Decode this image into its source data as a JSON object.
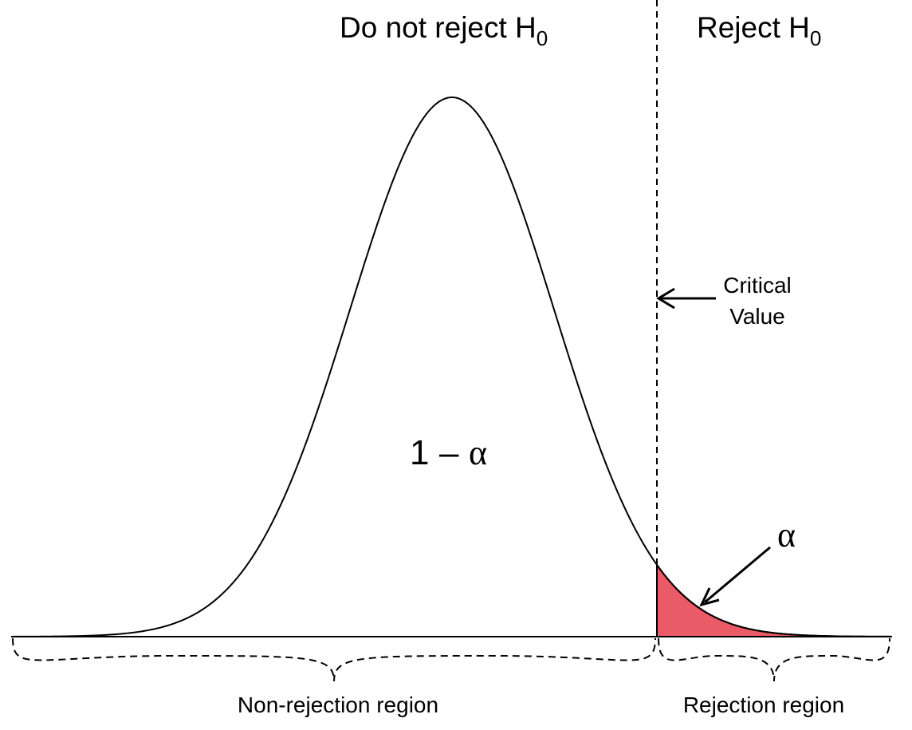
{
  "header": {
    "left_label": "Do not reject H",
    "left_subscript": "0",
    "right_label": "Reject H",
    "right_subscript": "0"
  },
  "annotations": {
    "critical_value_line1": "Critical",
    "critical_value_line2": "Value",
    "area_one": "1",
    "area_minus": "–",
    "area_alpha": "α",
    "tail_alpha": "α"
  },
  "regions": {
    "non_rejection": "Non-rejection region",
    "rejection": "Rejection region"
  },
  "colors": {
    "rejection_fill": "#e95b66",
    "stroke": "#000000"
  }
}
